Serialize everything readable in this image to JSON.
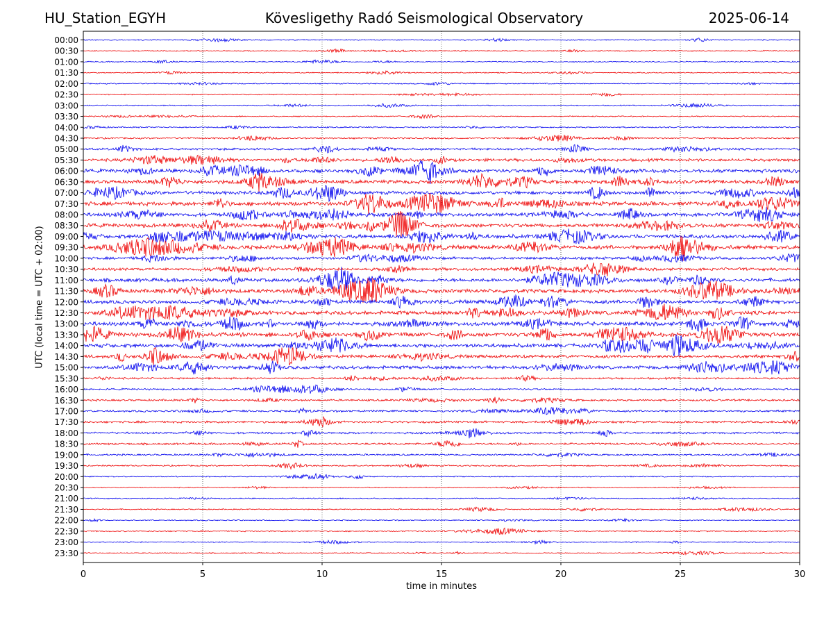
{
  "header": {
    "station": "HU_Station_EGYH",
    "observatory": "Kövesligethy Radó Seismological Observatory",
    "date": "2025-06-14"
  },
  "chart_data": {
    "type": "line",
    "title": "Kövesligethy Radó Seismological Observatory",
    "xlabel": "time in minutes",
    "ylabel": "UTC (local time = UTC + 02:00)",
    "xlim": [
      0,
      30
    ],
    "x_ticks": [
      0,
      5,
      10,
      15,
      20,
      25,
      30
    ],
    "grid": "vertical dotted at x ticks",
    "series_colors": [
      "#0000ee",
      "#ee0000"
    ],
    "rows": [
      {
        "label": "00:00",
        "level": 0.9
      },
      {
        "label": "00:30",
        "level": 0.9
      },
      {
        "label": "01:00",
        "level": 0.9
      },
      {
        "label": "01:30",
        "level": 0.9
      },
      {
        "label": "02:00",
        "level": 0.9
      },
      {
        "label": "02:30",
        "level": 0.9
      },
      {
        "label": "03:00",
        "level": 0.9
      },
      {
        "label": "03:30",
        "level": 0.9
      },
      {
        "label": "04:00",
        "level": 1.1
      },
      {
        "label": "04:30",
        "level": 1.3
      },
      {
        "label": "05:00",
        "level": 1.8
      },
      {
        "label": "05:30",
        "level": 2.4
      },
      {
        "label": "06:00",
        "level": 3.0
      },
      {
        "label": "06:30",
        "level": 3.0
      },
      {
        "label": "07:00",
        "level": 2.8
      },
      {
        "label": "07:30",
        "level": 3.4
      },
      {
        "label": "08:00",
        "level": 3.0
      },
      {
        "label": "08:30",
        "level": 3.2
      },
      {
        "label": "09:00",
        "level": 3.2
      },
      {
        "label": "09:30",
        "level": 3.3
      },
      {
        "label": "10:00",
        "level": 2.2
      },
      {
        "label": "10:30",
        "level": 2.4
      },
      {
        "label": "11:00",
        "level": 3.0
      },
      {
        "label": "11:30",
        "level": 3.2
      },
      {
        "label": "12:00",
        "level": 3.0
      },
      {
        "label": "12:30",
        "level": 3.2
      },
      {
        "label": "13:00",
        "level": 3.3
      },
      {
        "label": "13:30",
        "level": 3.4
      },
      {
        "label": "14:00",
        "level": 3.2
      },
      {
        "label": "14:30",
        "level": 2.6
      },
      {
        "label": "15:00",
        "level": 2.8
      },
      {
        "label": "15:30",
        "level": 1.6
      },
      {
        "label": "16:00",
        "level": 1.5
      },
      {
        "label": "16:30",
        "level": 1.6
      },
      {
        "label": "17:00",
        "level": 1.6
      },
      {
        "label": "17:30",
        "level": 1.8
      },
      {
        "label": "18:00",
        "level": 1.6
      },
      {
        "label": "18:30",
        "level": 1.6
      },
      {
        "label": "19:00",
        "level": 1.4
      },
      {
        "label": "19:30",
        "level": 1.2
      },
      {
        "label": "20:00",
        "level": 0.9
      },
      {
        "label": "20:30",
        "level": 0.9
      },
      {
        "label": "21:00",
        "level": 0.9
      },
      {
        "label": "21:30",
        "level": 0.9
      },
      {
        "label": "22:00",
        "level": 0.9
      },
      {
        "label": "22:30",
        "level": 1.0
      },
      {
        "label": "23:00",
        "level": 0.9
      },
      {
        "label": "23:30",
        "level": 0.9
      }
    ]
  }
}
